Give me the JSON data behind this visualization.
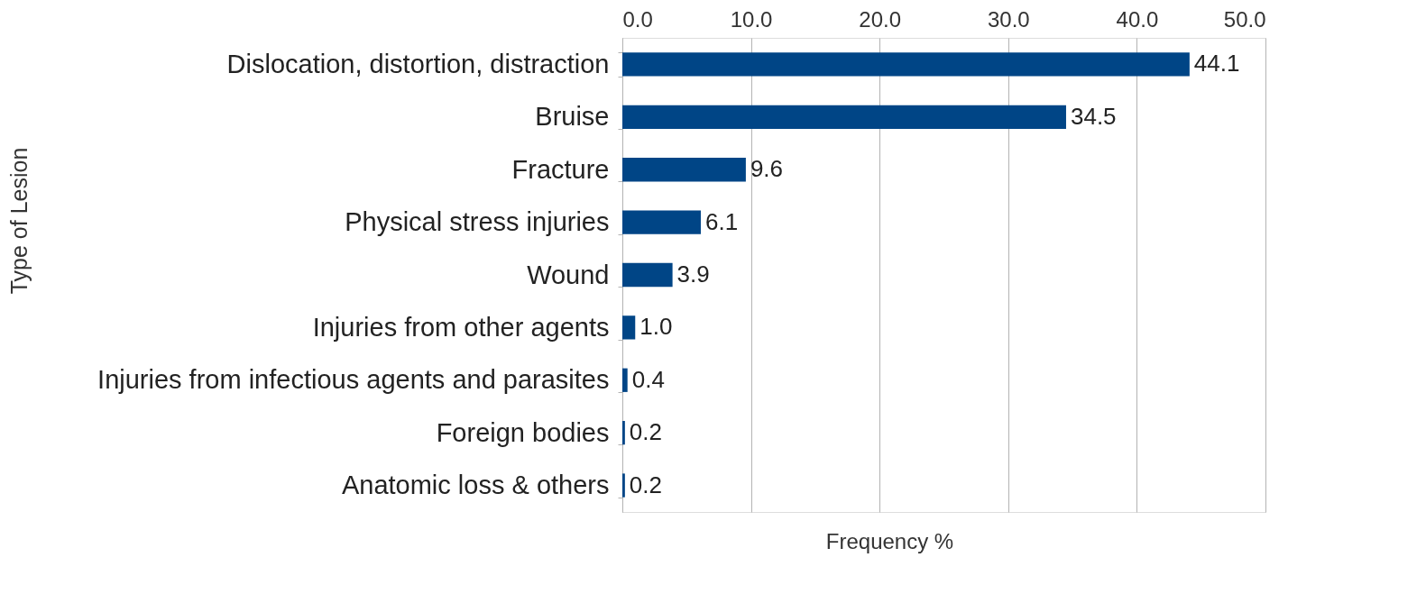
{
  "chart_data": {
    "type": "bar",
    "orientation": "horizontal",
    "xlabel": "Frequency %",
    "ylabel": "Type of Lesion",
    "categories": [
      "Dislocation, distortion, distraction",
      "Bruise",
      "Fracture",
      "Physical stress injuries",
      "Wound",
      "Injuries from other agents",
      "Injuries from infectious agents and parasites",
      "Foreign bodies",
      "Anatomic loss & others"
    ],
    "values": [
      44.1,
      34.5,
      9.6,
      6.1,
      3.9,
      1.0,
      0.4,
      0.2,
      0.2
    ],
    "color": "#004586",
    "xlim": [
      0,
      50
    ],
    "xticks": [
      {
        "value": 0,
        "label": "0.0"
      },
      {
        "value": 10,
        "label": "10.0"
      },
      {
        "value": 20,
        "label": "20.0"
      },
      {
        "value": 30,
        "label": "30.0"
      },
      {
        "value": 40,
        "label": "40.0"
      },
      {
        "value": 50,
        "label": "50.0"
      }
    ],
    "value_labels": [
      "44.1",
      "34.5",
      "9.6",
      "6.1",
      "3.9",
      "1.0",
      "0.4",
      "0.2",
      "0.2"
    ],
    "grid": "x"
  }
}
